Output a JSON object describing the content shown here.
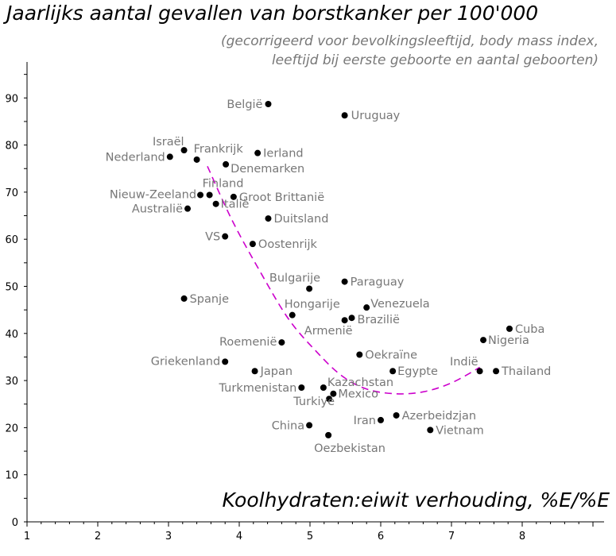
{
  "title": "Jaarlijks aantal gevallen van borstkanker per 100'000",
  "subtitle_lines": [
    "(gecorrigeerd voor bevolkingsleeftijd, body mass index,",
    "leeftijd bij eerste geboorte en aantal geboorten)"
  ],
  "chart_data": {
    "type": "scatter",
    "title": "Jaarlijks aantal gevallen van borstkanker per 100'000",
    "subtitle": "(gecorrigeerd voor bevolkingsleeftijd, body mass index, leeftijd bij eerste geboorte en aantal geboorten)",
    "xlabel": "Koolhydraten:eiwit verhouding, %E/%E",
    "ylabel": "",
    "xlim": [
      1,
      9
    ],
    "ylim": [
      0,
      95
    ],
    "x_ticks": [
      1,
      2,
      3,
      4,
      5,
      6,
      7,
      8
    ],
    "y_ticks": [
      0,
      10,
      20,
      30,
      40,
      50,
      60,
      70,
      80,
      90
    ],
    "grid": false,
    "marker_color": "#000000",
    "label_color": "#777777",
    "trend_color": "#cc00cc",
    "points": [
      {
        "label": "België",
        "x": 4.41,
        "y": 88.7,
        "anchor": "end",
        "dx": -7,
        "dy": 0
      },
      {
        "label": "Uruguay",
        "x": 5.49,
        "y": 86.3,
        "anchor": "start",
        "dx": 8,
        "dy": 0
      },
      {
        "label": "Israël",
        "x": 3.22,
        "y": 78.9,
        "anchor": "end",
        "dx": 0,
        "dy": -11
      },
      {
        "label": "Frankrijk",
        "x": 3.4,
        "y": 76.9,
        "anchor": "start",
        "dx": -4,
        "dy": -14
      },
      {
        "label": "Ierland",
        "x": 4.26,
        "y": 78.3,
        "anchor": "start",
        "dx": 7,
        "dy": 0
      },
      {
        "label": "Nederland",
        "x": 3.02,
        "y": 77.5,
        "anchor": "end",
        "dx": -6,
        "dy": 0
      },
      {
        "label": "Denemarken",
        "x": 3.81,
        "y": 75.9,
        "anchor": "start",
        "dx": 6,
        "dy": 5
      },
      {
        "label": "Nieuw-Zeeland",
        "x": 3.45,
        "y": 69.4,
        "anchor": "end",
        "dx": -5,
        "dy": -1
      },
      {
        "label": "Finland",
        "x": 3.58,
        "y": 69.4,
        "anchor": "start",
        "dx": -9,
        "dy": -15
      },
      {
        "label": "Groot Brittanië",
        "x": 3.92,
        "y": 69.0,
        "anchor": "start",
        "dx": 7,
        "dy": 0
      },
      {
        "label": "Italië",
        "x": 3.67,
        "y": 67.5,
        "anchor": "start",
        "dx": 6,
        "dy": 0
      },
      {
        "label": "Australië",
        "x": 3.27,
        "y": 66.5,
        "anchor": "end",
        "dx": -6,
        "dy": 0
      },
      {
        "label": "Duitsland",
        "x": 4.41,
        "y": 64.4,
        "anchor": "start",
        "dx": 7,
        "dy": 0
      },
      {
        "label": "VS",
        "x": 3.8,
        "y": 60.6,
        "anchor": "end",
        "dx": -6,
        "dy": 0
      },
      {
        "label": "Oostenrijk",
        "x": 4.19,
        "y": 59.0,
        "anchor": "start",
        "dx": 7,
        "dy": 0
      },
      {
        "label": "Bulgarije",
        "x": 4.99,
        "y": 49.5,
        "anchor": "end",
        "dx": 14,
        "dy": -14
      },
      {
        "label": "Paraguay",
        "x": 5.49,
        "y": 51.0,
        "anchor": "start",
        "dx": 7,
        "dy": 0
      },
      {
        "label": "Spanje",
        "x": 3.22,
        "y": 47.4,
        "anchor": "start",
        "dx": 7,
        "dy": 0
      },
      {
        "label": "Hongarije",
        "x": 4.75,
        "y": 43.9,
        "anchor": "start",
        "dx": -10,
        "dy": -14
      },
      {
        "label": "Venezuela",
        "x": 5.8,
        "y": 45.5,
        "anchor": "start",
        "dx": 5,
        "dy": -5
      },
      {
        "label": "Armenië",
        "x": 5.49,
        "y": 42.8,
        "anchor": "end",
        "dx": 10,
        "dy": 13
      },
      {
        "label": "Brazilië",
        "x": 5.59,
        "y": 43.3,
        "anchor": "start",
        "dx": 7,
        "dy": 2
      },
      {
        "label": "Cuba",
        "x": 7.82,
        "y": 41.0,
        "anchor": "start",
        "dx": 7,
        "dy": 0
      },
      {
        "label": "Nigeria",
        "x": 7.45,
        "y": 38.6,
        "anchor": "start",
        "dx": 6,
        "dy": 0
      },
      {
        "label": "Roemenië",
        "x": 4.6,
        "y": 38.1,
        "anchor": "end",
        "dx": -6,
        "dy": -1
      },
      {
        "label": "Oekraïne",
        "x": 5.7,
        "y": 35.5,
        "anchor": "start",
        "dx": 7,
        "dy": 0
      },
      {
        "label": "Griekenland",
        "x": 3.8,
        "y": 34.0,
        "anchor": "end",
        "dx": -6,
        "dy": -1
      },
      {
        "label": "Egypte",
        "x": 6.17,
        "y": 32.0,
        "anchor": "start",
        "dx": 6,
        "dy": 0
      },
      {
        "label": "Indië",
        "x": 7.4,
        "y": 32.0,
        "anchor": "end",
        "dx": -2,
        "dy": -12
      },
      {
        "label": "Thailand",
        "x": 7.63,
        "y": 32.0,
        "anchor": "start",
        "dx": 7,
        "dy": 0
      },
      {
        "label": "Japan",
        "x": 4.22,
        "y": 32.0,
        "anchor": "start",
        "dx": 7,
        "dy": 0
      },
      {
        "label": "Kazachstan",
        "x": 5.19,
        "y": 28.5,
        "anchor": "start",
        "dx": 5,
        "dy": -7
      },
      {
        "label": "Turkmenistan",
        "x": 4.88,
        "y": 28.5,
        "anchor": "end",
        "dx": -6,
        "dy": 0
      },
      {
        "label": "Mexico",
        "x": 5.33,
        "y": 27.2,
        "anchor": "start",
        "dx": 6,
        "dy": 0
      },
      {
        "label": "Turkiye",
        "x": 5.27,
        "y": 26.1,
        "anchor": "end",
        "dx": 7,
        "dy": 3
      },
      {
        "label": "Iran",
        "x": 6.0,
        "y": 21.6,
        "anchor": "end",
        "dx": -6,
        "dy": 0
      },
      {
        "label": "Azerbeidzjan",
        "x": 6.22,
        "y": 22.6,
        "anchor": "start",
        "dx": 7,
        "dy": 0
      },
      {
        "label": "China",
        "x": 4.99,
        "y": 20.5,
        "anchor": "end",
        "dx": -6,
        "dy": 0
      },
      {
        "label": "Vietnam",
        "x": 6.7,
        "y": 19.5,
        "anchor": "start",
        "dx": 7,
        "dy": 0
      },
      {
        "label": "Oezbekistan",
        "x": 5.26,
        "y": 18.4,
        "anchor": "start",
        "dx": -18,
        "dy": 16
      }
    ],
    "trend_curve": [
      {
        "x": 3.55,
        "y": 75.5
      },
      {
        "x": 3.9,
        "y": 64.0
      },
      {
        "x": 4.3,
        "y": 53.0
      },
      {
        "x": 4.7,
        "y": 43.0
      },
      {
        "x": 5.1,
        "y": 36.0
      },
      {
        "x": 5.45,
        "y": 31.0
      },
      {
        "x": 5.8,
        "y": 28.2
      },
      {
        "x": 6.2,
        "y": 27.2
      },
      {
        "x": 6.6,
        "y": 27.6
      },
      {
        "x": 7.0,
        "y": 29.5
      },
      {
        "x": 7.4,
        "y": 32.8
      }
    ]
  }
}
